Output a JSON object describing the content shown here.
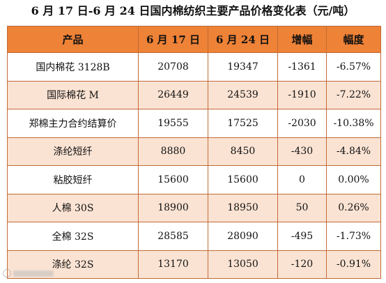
{
  "title": "6 月 17 日-6 月 24 日国内棉纺织主要产品价格变化表（元/吨）",
  "table": {
    "headers": [
      "产品",
      "6 月 17 日",
      "6 月 24 日",
      "增幅",
      "幅度"
    ],
    "rows": [
      [
        "国内棉花 3128B",
        "20708",
        "19347",
        "-1361",
        "-6.57%"
      ],
      [
        "国际棉花 M",
        "26449",
        "24539",
        "-1910",
        "-7.22%"
      ],
      [
        "郑棉主力合约结算价",
        "19555",
        "17525",
        "-2030",
        "-10.38%"
      ],
      [
        "涤纶短纤",
        "8880",
        "8450",
        "-430",
        "-4.84%"
      ],
      [
        "粘胶短纤",
        "15600",
        "15600",
        "0",
        "0.00%"
      ],
      [
        "人棉 30S",
        "18900",
        "18950",
        "50",
        "0.26%"
      ],
      [
        "全棉 32S",
        "28585",
        "28090",
        "-495",
        "-1.73%"
      ],
      [
        "涤纶 32S",
        "13170",
        "13050",
        "-120",
        "-0.91%"
      ]
    ]
  },
  "colors": {
    "header_bg": "#ee8236",
    "stripe_bg": "#fbe3d3",
    "border": "#c06a38"
  }
}
